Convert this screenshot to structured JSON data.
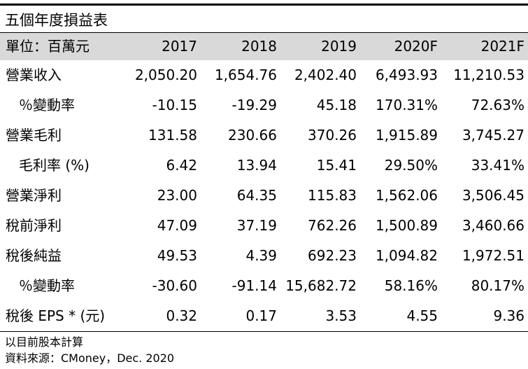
{
  "title": "五個年度損益表",
  "header": {
    "label": "單位：百萬元",
    "years": [
      "2017",
      "2018",
      "2019",
      "2020F",
      "2021F"
    ]
  },
  "rows": [
    {
      "label": "營業收入",
      "values": [
        "2,050.20",
        "1,654.76",
        "2,402.40",
        "6,493.93",
        "11,210.53"
      ]
    },
    {
      "label": "％變動率",
      "values": [
        "-10.15",
        "-19.29",
        "45.18",
        "170.31%",
        "72.63%"
      ]
    },
    {
      "label": "營業毛利",
      "values": [
        "131.58",
        "230.66",
        "370.26",
        "1,915.89",
        "3,745.27"
      ]
    },
    {
      "label": "毛利率 (%)",
      "values": [
        "6.42",
        "13.94",
        "15.41",
        "29.50%",
        "33.41%"
      ]
    },
    {
      "label": "營業淨利",
      "values": [
        "23.00",
        "64.35",
        "115.83",
        "1,562.06",
        "3,506.45"
      ]
    },
    {
      "label": "稅前淨利",
      "values": [
        "47.09",
        "37.19",
        "762.26",
        "1,500.89",
        "3,460.66"
      ]
    },
    {
      "label": "稅後純益",
      "values": [
        "49.53",
        "4.39",
        "692.23",
        "1,094.82",
        "1,972.51"
      ]
    },
    {
      "label": "％變動率",
      "values": [
        "-30.60",
        "-91.14",
        "15,682.72",
        "58.16%",
        "80.17%"
      ]
    },
    {
      "label": "稅後 EPS * (元)",
      "values": [
        "0.32",
        "0.17",
        "3.53",
        "4.55",
        "9.36"
      ]
    }
  ],
  "footnotes": {
    "note": "以目前股本計算",
    "source": "資料來源：CMoney，Dec. 2020"
  }
}
